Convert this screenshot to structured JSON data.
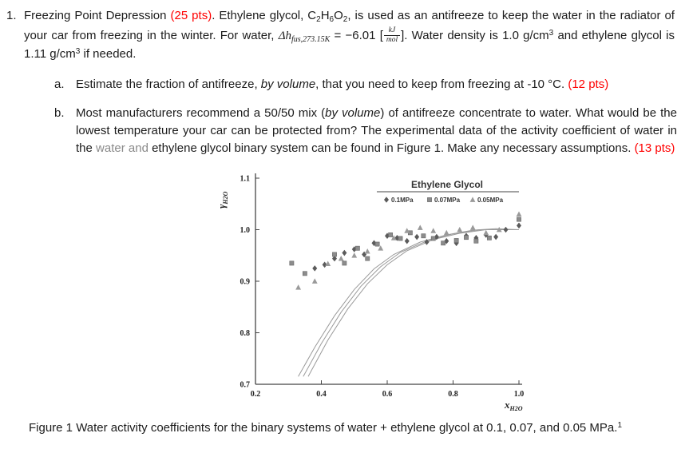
{
  "colors": {
    "accent_red": "#ff0000",
    "muted_gray": "#8a8a8a",
    "text": "#1b1b1b"
  },
  "doc": {
    "problem_number": "1.",
    "intro_segments": [
      {
        "t": "Freezing Point Depression ",
        "s": "plain"
      },
      {
        "t": "(25 pts)",
        "s": "red"
      },
      {
        "t": ". Ethylene glycol, C",
        "s": "plain"
      },
      {
        "t": "2",
        "s": "sub"
      },
      {
        "t": "H",
        "s": "plain"
      },
      {
        "t": "6",
        "s": "sub"
      },
      {
        "t": "O",
        "s": "plain"
      },
      {
        "t": "2",
        "s": "sub"
      },
      {
        "t": ", is used as an antifreeze to keep the water in the radiator of your car from freezing in the winter. For water, ",
        "s": "plain"
      },
      {
        "t": "Δh",
        "s": "mathvar"
      },
      {
        "t": "fus,273.15K",
        "s": "mathsub"
      },
      {
        "t": " = −6.01 [",
        "s": "plain"
      },
      {
        "frac": {
          "num": "kJ",
          "den": "mol"
        }
      },
      {
        "t": "]. Water density is 1.0 g/cm",
        "s": "plain"
      },
      {
        "t": "3",
        "s": "sup"
      },
      {
        "t": " and ethylene glycol is 1.11 g/cm",
        "s": "plain"
      },
      {
        "t": "3",
        "s": "sup"
      },
      {
        "t": " if needed.",
        "s": "plain"
      }
    ],
    "item_a": {
      "label": "a.",
      "segments": [
        {
          "t": "Estimate the fraction of antifreeze, ",
          "s": "plain"
        },
        {
          "t": "by volume",
          "s": "italic"
        },
        {
          "t": ", that you need to keep from freezing at -10 °C. ",
          "s": "plain"
        },
        {
          "t": "(12 pts)",
          "s": "red"
        }
      ]
    },
    "item_b": {
      "label": "b.",
      "segments": [
        {
          "t": "Most manufacturers recommend a 50/50 mix (",
          "s": "plain"
        },
        {
          "t": "by volume",
          "s": "italic"
        },
        {
          "t": ") of antifreeze concentrate to water. What would be the lowest temperature your car can be protected from? The experimental data of the activity coefficient of water in the ",
          "s": "plain"
        },
        {
          "t": "water and",
          "s": "gray"
        },
        {
          "t": " ethylene glycol binary system can be found in Figure 1. Make any necessary assumptions. ",
          "s": "plain"
        },
        {
          "t": "(13 pts)",
          "s": "red"
        }
      ]
    },
    "caption_segments": [
      {
        "t": "Figure 1 Water activity coefficients for the binary systems of water + ethylene glycol at 0.1, 0.07, and 0.05 MPa.",
        "s": "plain"
      },
      {
        "t": "1",
        "s": "sup"
      }
    ]
  },
  "chart_data": {
    "type": "scatter",
    "title": "Ethylene Glycol",
    "xlabel": {
      "main": "x",
      "sub": "H2O"
    },
    "ylabel": {
      "main": "γ",
      "sub": "H2O"
    },
    "xlim": [
      0.2,
      1.0
    ],
    "ylim": [
      0.7,
      1.1
    ],
    "xticks": [
      0.2,
      0.4,
      0.6,
      0.8,
      1.0
    ],
    "yticks": [
      0.7,
      0.8,
      0.9,
      1.0,
      1.1
    ],
    "grid": false,
    "legend_position": "top-right-inside",
    "legend_title": "Ethylene Glycol",
    "legend": [
      {
        "marker": "diamond",
        "label": "0.1MPa"
      },
      {
        "marker": "square",
        "label": "0.07MPa"
      },
      {
        "marker": "triangle",
        "label": "0.05MPa"
      }
    ],
    "series": [
      {
        "name": "0.1MPa",
        "marker": "diamond",
        "color": "#5b5b5b",
        "points": [
          [
            0.38,
            0.925
          ],
          [
            0.41,
            0.932
          ],
          [
            0.44,
            0.944
          ],
          [
            0.47,
            0.955
          ],
          [
            0.5,
            0.962
          ],
          [
            0.53,
            0.952
          ],
          [
            0.56,
            0.974
          ],
          [
            0.6,
            0.988
          ],
          [
            0.63,
            0.984
          ],
          [
            0.66,
            0.978
          ],
          [
            0.69,
            0.986
          ],
          [
            0.72,
            0.976
          ],
          [
            0.75,
            0.986
          ],
          [
            0.78,
            0.978
          ],
          [
            0.81,
            0.974
          ],
          [
            0.84,
            0.988
          ],
          [
            0.87,
            0.984
          ],
          [
            0.9,
            0.99
          ],
          [
            0.93,
            0.986
          ],
          [
            0.96,
            1.0
          ],
          [
            1.0,
            1.008
          ]
        ]
      },
      {
        "name": "0.07MPa",
        "marker": "square",
        "color": "#8c8c8c",
        "points": [
          [
            0.31,
            0.935
          ],
          [
            0.35,
            0.915
          ],
          [
            0.44,
            0.952
          ],
          [
            0.47,
            0.935
          ],
          [
            0.51,
            0.964
          ],
          [
            0.54,
            0.944
          ],
          [
            0.57,
            0.972
          ],
          [
            0.61,
            0.99
          ],
          [
            0.64,
            0.983
          ],
          [
            0.67,
            0.994
          ],
          [
            0.71,
            0.988
          ],
          [
            0.74,
            0.983
          ],
          [
            0.77,
            0.974
          ],
          [
            0.81,
            0.979
          ],
          [
            0.84,
            0.985
          ],
          [
            0.87,
            0.978
          ],
          [
            0.91,
            0.984
          ],
          [
            1.0,
            1.02
          ]
        ]
      },
      {
        "name": "0.05MPa",
        "marker": "triangle",
        "color": "#9a9a9a",
        "points": [
          [
            0.33,
            0.888
          ],
          [
            0.38,
            0.9
          ],
          [
            0.42,
            0.934
          ],
          [
            0.46,
            0.944
          ],
          [
            0.5,
            0.95
          ],
          [
            0.54,
            0.958
          ],
          [
            0.58,
            0.964
          ],
          [
            0.62,
            0.984
          ],
          [
            0.66,
            0.998
          ],
          [
            0.7,
            1.004
          ],
          [
            0.74,
            0.998
          ],
          [
            0.78,
            0.994
          ],
          [
            0.82,
            1.0
          ],
          [
            0.86,
            1.004
          ],
          [
            0.9,
            0.994
          ],
          [
            0.94,
            1.0
          ],
          [
            1.0,
            1.03
          ]
        ]
      }
    ],
    "curves": [
      {
        "name": "model-1",
        "points": [
          [
            0.33,
            0.715
          ],
          [
            0.38,
            0.772
          ],
          [
            0.44,
            0.833
          ],
          [
            0.5,
            0.884
          ],
          [
            0.56,
            0.924
          ],
          [
            0.62,
            0.952
          ],
          [
            0.7,
            0.976
          ],
          [
            0.78,
            0.99
          ],
          [
            0.86,
            0.999
          ],
          [
            0.93,
            1.002
          ],
          [
            1.0,
            1.0
          ]
        ]
      },
      {
        "name": "model-2",
        "points": [
          [
            0.345,
            0.715
          ],
          [
            0.4,
            0.779
          ],
          [
            0.46,
            0.84
          ],
          [
            0.52,
            0.89
          ],
          [
            0.58,
            0.928
          ],
          [
            0.64,
            0.956
          ],
          [
            0.72,
            0.978
          ],
          [
            0.8,
            0.992
          ],
          [
            0.88,
            1.0
          ],
          [
            1.0,
            1.0
          ]
        ]
      },
      {
        "name": "model-3",
        "points": [
          [
            0.36,
            0.715
          ],
          [
            0.42,
            0.786
          ],
          [
            0.48,
            0.846
          ],
          [
            0.54,
            0.895
          ],
          [
            0.6,
            0.932
          ],
          [
            0.66,
            0.959
          ],
          [
            0.74,
            0.981
          ],
          [
            0.82,
            0.993
          ],
          [
            0.9,
            1.0
          ],
          [
            1.0,
            1.0
          ]
        ]
      }
    ]
  }
}
